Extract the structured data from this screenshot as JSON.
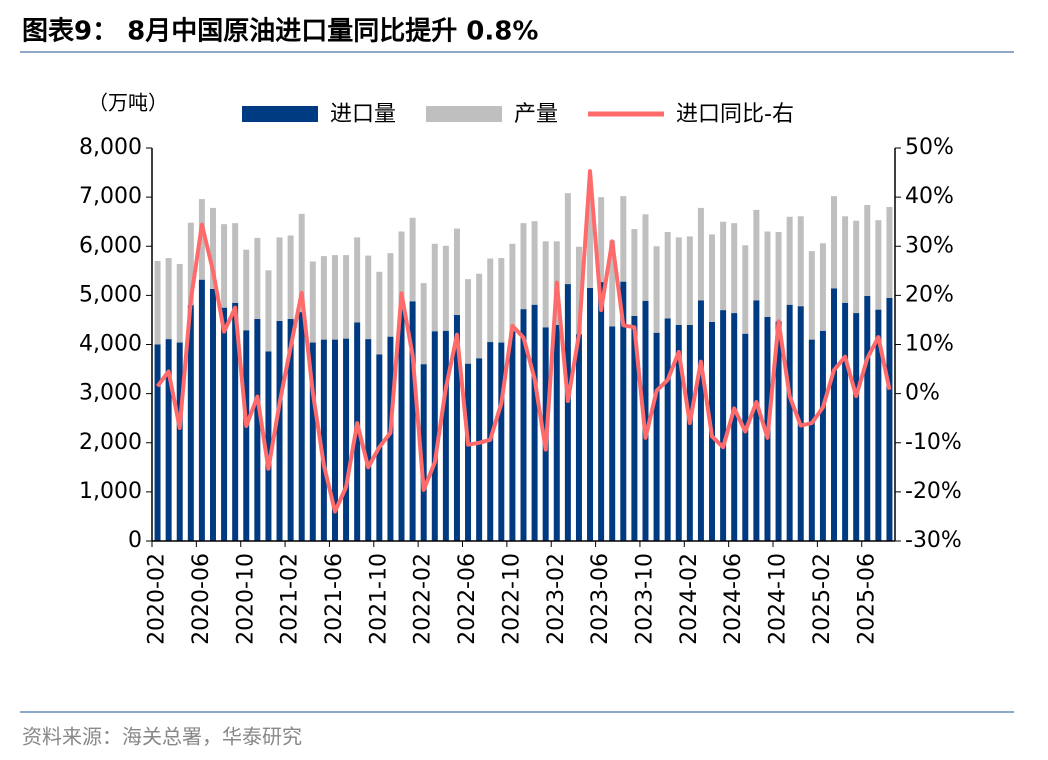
{
  "chart_data": {
    "type": "bar",
    "stacked": true,
    "title": "图表9：  8月中国原油进口量同比提升 0.8%",
    "y_axis_label": "（万吨）",
    "source": "资料来源：海关总署，华泰研究",
    "categories": [
      "2020-02",
      null,
      null,
      null,
      "2020-06",
      null,
      null,
      null,
      "2020-10",
      null,
      null,
      null,
      "2021-02",
      null,
      null,
      null,
      "2021-06",
      null,
      null,
      null,
      "2021-10",
      null,
      null,
      null,
      "2022-02",
      null,
      null,
      null,
      "2022-06",
      null,
      null,
      null,
      "2022-10",
      null,
      null,
      null,
      "2023-02",
      null,
      null,
      null,
      "2023-06",
      null,
      null,
      null,
      "2023-10",
      null,
      null,
      null,
      "2024-02",
      null,
      null,
      null,
      "2024-06",
      null,
      null,
      null,
      "2024-10",
      null,
      null,
      null,
      "2025-02",
      null,
      null,
      null,
      "2025-06",
      null,
      null
    ],
    "series": [
      {
        "name": "进口量",
        "color": "#003a80",
        "values": [
          4000,
          4110,
          4040,
          4800,
          5320,
          5130,
          4750,
          4850,
          4290,
          4520,
          3860,
          4480,
          4520,
          4660,
          4040,
          4100,
          4100,
          4120,
          4450,
          4110,
          3800,
          4160,
          4750,
          4880,
          3600,
          4270,
          4280,
          4600,
          3610,
          3720,
          4050,
          4040,
          4270,
          4720,
          4810,
          4350,
          4400,
          5230,
          4210,
          5150,
          5270,
          4370,
          5280,
          4580,
          4890,
          4240,
          4530,
          4400,
          4400,
          4900,
          4460,
          4700,
          4640,
          4220,
          4900,
          4560,
          4470,
          4810,
          4780,
          4100,
          4280,
          5140,
          4850,
          4640,
          4990,
          4710,
          4950
        ]
      },
      {
        "name": "产量",
        "color": "#bfbfbf",
        "values": [
          1700,
          1650,
          1600,
          1680,
          1640,
          1650,
          1700,
          1620,
          1640,
          1650,
          1650,
          1700,
          1700,
          2000,
          1650,
          1700,
          1720,
          1700,
          1730,
          1700,
          1680,
          1700,
          1550,
          1700,
          1650,
          1780,
          1730,
          1760,
          1720,
          1720,
          1700,
          1720,
          1780,
          1750,
          1700,
          1750,
          1700,
          1850,
          1780,
          1830,
          1730,
          1750,
          1740,
          1770,
          1760,
          1760,
          1760,
          1780,
          1800,
          1880,
          1780,
          1800,
          1830,
          1800,
          1840,
          1740,
          1820,
          1790,
          1830,
          1800,
          1780,
          1880,
          1760,
          1880,
          1850,
          1820,
          1850
        ]
      },
      {
        "name": "进口同比-右",
        "color": "#ff6b6b",
        "axis": "y2",
        "values": [
          1.5,
          4.5,
          -7,
          19,
          34.4,
          25,
          12.6,
          17.5,
          -6.6,
          -0.6,
          -15.3,
          -2,
          9.5,
          20.5,
          0.2,
          -14.6,
          -24,
          -19,
          -6,
          -15,
          -10.9,
          -8,
          20.4,
          7.8,
          -19.6,
          -14,
          1.2,
          12,
          -10.4,
          -10,
          -9.4,
          -2,
          13.8,
          11.4,
          3,
          -11.4,
          22.6,
          -1.5,
          12,
          45.3,
          17,
          31,
          13.9,
          13.5,
          -9,
          0.6,
          2.8,
          8.5,
          -6,
          6.5,
          -8.7,
          -10.9,
          -3,
          -7.7,
          -1.7,
          -9,
          14.7,
          -0.5,
          -6.5,
          -6,
          -2.8,
          4.8,
          7.5,
          -0.5,
          7.2,
          11.5,
          0.8
        ]
      }
    ],
    "ylim": [
      0,
      8000
    ],
    "yticks": [
      0,
      {
        "value": 1000,
        "label": "1,000"
      },
      {
        "value": 2000,
        "label": "2,000"
      },
      {
        "value": 3000,
        "label": "3,000"
      },
      {
        "value": 4000,
        "label": "4,000"
      },
      {
        "value": 5000,
        "label": "5,000"
      },
      {
        "value": 6000,
        "label": "6,000"
      },
      {
        "value": 7000,
        "label": "7,000"
      },
      {
        "value": 8000,
        "label": "8,000"
      }
    ],
    "y2lim": [
      -30,
      50
    ],
    "y2ticks": [
      {
        "value": -30,
        "label": "-30%"
      },
      {
        "value": -20,
        "label": "-20%"
      },
      {
        "value": -10,
        "label": "-10%"
      },
      {
        "value": 0,
        "label": "0%"
      },
      {
        "value": 10,
        "label": "10%"
      },
      {
        "value": 20,
        "label": "20%"
      },
      {
        "value": 30,
        "label": "30%"
      },
      {
        "value": 40,
        "label": "40%"
      },
      {
        "value": 50,
        "label": "50%"
      }
    ],
    "legend": "top"
  }
}
